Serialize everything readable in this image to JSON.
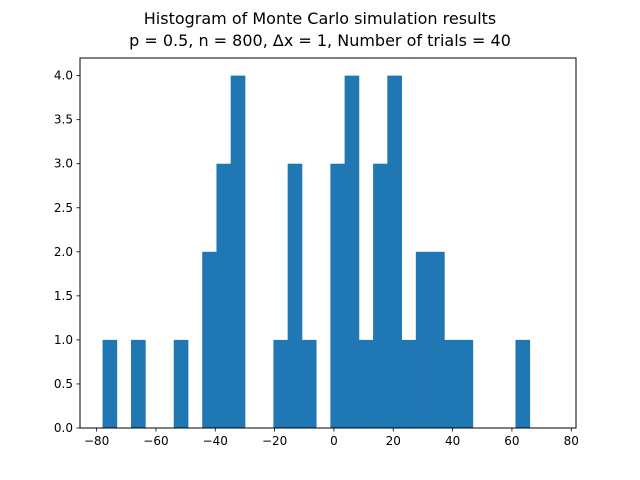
{
  "chart_data": {
    "type": "bar",
    "title_line1": "Histogram of Monte Carlo simulation results",
    "title_line2": "p = 0.5, n = 800, Δx = 1, Number of trials = 40",
    "xlabel": "",
    "ylabel": "",
    "xlim": [
      -85.6,
      81.6
    ],
    "ylim": [
      0,
      4.2
    ],
    "bar_color": "#1f77b4",
    "bin_edges": [
      -78,
      -73.2,
      -68.4,
      -63.6,
      -58.8,
      -54,
      -49.2,
      -44.4,
      -39.6,
      -34.8,
      -30,
      -25.2,
      -20.4,
      -15.6,
      -10.8,
      -6,
      -1.2,
      3.6,
      8.4,
      13.2,
      18,
      22.8,
      27.6,
      32.4,
      37.2,
      42,
      46.8,
      51.6,
      56.4,
      61.2,
      66,
      70.8,
      75.6
    ],
    "counts": [
      1,
      0,
      1,
      0,
      0,
      1,
      0,
      2,
      3,
      4,
      0,
      0,
      1,
      3,
      1,
      0,
      3,
      4,
      1,
      3,
      4,
      1,
      2,
      2,
      1,
      1,
      0,
      0,
      0,
      1,
      0,
      0
    ],
    "x_ticks": [
      -80,
      -60,
      -40,
      -20,
      0,
      20,
      40,
      60,
      80
    ],
    "x_tick_labels": [
      "−80",
      "−60",
      "−40",
      "−20",
      "0",
      "20",
      "40",
      "60",
      "80"
    ],
    "y_ticks": [
      0,
      0.5,
      1,
      1.5,
      2,
      2.5,
      3,
      3.5,
      4
    ],
    "y_tick_labels": [
      "0.0",
      "0.5",
      "1.0",
      "1.5",
      "2.0",
      "2.5",
      "3.0",
      "3.5",
      "4.0"
    ],
    "grid": false,
    "legend": "none"
  }
}
